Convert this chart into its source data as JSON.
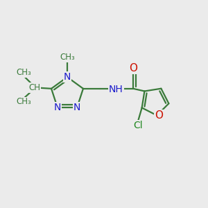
{
  "bg_color": "#ebebeb",
  "bond_color": "#3a7a3a",
  "N_color": "#1a1acc",
  "O_color": "#cc1100",
  "Cl_color": "#228822",
  "C_color": "#3a7a3a",
  "bond_width": 1.6,
  "font_size_atom": 10,
  "font_size_small": 8.5,
  "xlim": [
    0,
    10
  ],
  "ylim": [
    0,
    10
  ]
}
